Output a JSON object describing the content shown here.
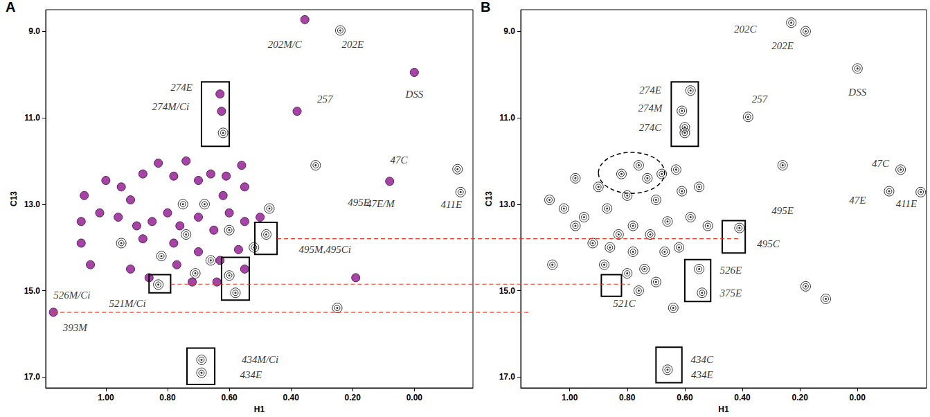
{
  "chart_data": [
    {
      "type": "scatter",
      "panel": "A",
      "x_label": "H1",
      "y_label": "C13",
      "xlim": [
        1.195,
        -0.19
      ],
      "ylim": [
        17.25,
        8.5
      ],
      "xticks": [
        {
          "value": 1,
          "label": "1.00"
        },
        {
          "value": 0.8,
          "label": "0.80"
        },
        {
          "value": 0.6,
          "label": "0.60"
        },
        {
          "value": 0.4,
          "label": "0.40"
        },
        {
          "value": 0.2,
          "label": "0.20"
        },
        {
          "value": 0,
          "label": "0.00"
        }
      ],
      "yticks": [
        {
          "value": 9,
          "label": "9.0"
        },
        {
          "value": 11,
          "label": "11.0"
        },
        {
          "value": 13,
          "label": "13.0"
        },
        {
          "value": 15,
          "label": "15.0"
        },
        {
          "value": 17,
          "label": "17.0"
        }
      ],
      "series": [
        {
          "color": "#000000",
          "marker": "contour",
          "x": [
            0.24,
            -0.14,
            -0.15,
            0.32,
            0.48,
            0.83,
            0.58,
            0.69,
            0.69,
            0.25,
            0.62,
            0.75,
            0.68,
            0.82,
            0.71,
            0.47,
            0.6,
            0.52,
            0.66,
            0.74,
            0.95,
            0.6
          ],
          "y": [
            8.98,
            12.19,
            12.72,
            12.1,
            13.7,
            14.86,
            15.05,
            16.6,
            16.9,
            15.4,
            11.35,
            13.0,
            13.0,
            14.2,
            14.6,
            13.1,
            13.6,
            14.0,
            14.3,
            13.7,
            13.9,
            14.65
          ]
        },
        {
          "color": "#9b309b",
          "marker": "filled",
          "x": [
            0.355,
            0.0,
            0.63,
            0.625,
            0.38,
            0.08,
            1.17,
            0.19,
            1.07,
            1.0,
            0.95,
            0.92,
            0.88,
            0.83,
            0.78,
            0.74,
            0.7,
            0.66,
            0.61,
            0.56,
            0.55,
            0.62,
            1.08,
            1.02,
            0.96,
            0.9,
            0.85,
            0.8,
            0.76,
            0.7,
            0.65,
            0.6,
            0.55,
            0.5,
            0.88,
            0.78,
            1.05,
            0.92,
            0.86,
            0.77,
            0.7,
            0.63,
            0.55,
            0.64,
            0.72,
            1.08,
            0.57
          ],
          "y": [
            8.73,
            9.95,
            10.45,
            10.85,
            10.85,
            12.47,
            15.5,
            14.7,
            12.8,
            12.45,
            12.6,
            12.9,
            12.3,
            12.05,
            12.35,
            12.0,
            12.45,
            12.3,
            12.35,
            12.1,
            12.6,
            12.8,
            13.4,
            13.2,
            13.3,
            13.5,
            13.4,
            13.2,
            13.5,
            13.3,
            13.6,
            13.2,
            13.4,
            13.3,
            13.8,
            13.9,
            14.4,
            14.5,
            14.7,
            14.4,
            14.1,
            14.3,
            14.5,
            14.8,
            14.8,
            13.9,
            14.05
          ]
        }
      ],
      "annotations": [
        {
          "text": "202M/C",
          "x": 0.42,
          "y": 9.3
        },
        {
          "text": "202E",
          "x": 0.2,
          "y": 9.3
        },
        {
          "text": "DSS",
          "x": 0.0,
          "y": 10.45
        },
        {
          "text": "274E",
          "x": 0.755,
          "y": 10.3
        },
        {
          "text": "274M/Ci",
          "x": 0.79,
          "y": 10.75
        },
        {
          "text": "257",
          "x": 0.29,
          "y": 10.56
        },
        {
          "text": "47C",
          "x": 0.05,
          "y": 11.98
        },
        {
          "text": "47E/M",
          "x": 0.11,
          "y": 12.98
        },
        {
          "text": "411E",
          "x": -0.12,
          "y": 13.0
        },
        {
          "text": "495E",
          "x": 0.18,
          "y": 12.95
        },
        {
          "text": "495M,495Ci",
          "x": 0.29,
          "y": 14.05
        },
        {
          "text": "526M/Ci",
          "x": 1.11,
          "y": 15.1
        },
        {
          "text": "521M/Ci",
          "x": 0.93,
          "y": 15.3
        },
        {
          "text": "393M",
          "x": 1.1,
          "y": 15.85
        },
        {
          "text": "434M/Ci",
          "x": 0.5,
          "y": 16.6
        },
        {
          "text": "434E",
          "x": 0.53,
          "y": 16.95
        }
      ],
      "boxes": [
        {
          "x": [
            0.69,
            0.6
          ],
          "y": [
            10.17,
            11.66
          ]
        },
        {
          "x": [
            0.517,
            0.445
          ],
          "y": [
            13.42,
            14.16
          ]
        },
        {
          "x": [
            0.86,
            0.79
          ],
          "y": [
            14.63,
            15.05
          ]
        },
        {
          "x": [
            0.625,
            0.535
          ],
          "y": [
            14.23,
            15.22
          ]
        },
        {
          "x": [
            0.737,
            0.647
          ],
          "y": [
            16.33,
            17.17
          ]
        }
      ]
    },
    {
      "type": "scatter",
      "panel": "B",
      "x_label": "H1",
      "y_label": "C13",
      "xlim": [
        1.17,
        -0.24
      ],
      "ylim": [
        17.25,
        8.5
      ],
      "xticks": [
        {
          "value": 1,
          "label": "1.00"
        },
        {
          "value": 0.8,
          "label": "0.80"
        },
        {
          "value": 0.6,
          "label": "0.60"
        },
        {
          "value": 0.4,
          "label": "0.40"
        },
        {
          "value": 0.2,
          "label": "0.20"
        },
        {
          "value": 0,
          "label": "0.00"
        }
      ],
      "yticks": [
        {
          "value": 9,
          "label": "9.0"
        },
        {
          "value": 11,
          "label": "11.0"
        },
        {
          "value": 13,
          "label": "13.0"
        },
        {
          "value": 15,
          "label": "15.0"
        },
        {
          "value": 17,
          "label": "17.0"
        }
      ],
      "series": [
        {
          "color": "#000000",
          "marker": "contour",
          "x": [
            0.23,
            0.18,
            0.0,
            0.58,
            0.61,
            0.6,
            0.6,
            0.38,
            0.26,
            -0.15,
            -0.11,
            -0.22,
            0.41,
            0.55,
            0.54,
            0.66,
            0.18,
            0.11,
            0.64,
            1.07,
            1.06,
            0.98,
            0.95,
            0.9,
            0.87,
            0.86,
            0.82,
            0.8,
            0.76,
            0.73,
            0.7,
            0.68,
            0.66,
            0.63,
            0.61,
            0.58,
            0.55,
            0.52,
            0.78,
            0.72,
            0.83,
            0.92,
            0.98,
            1.02,
            0.78,
            0.74,
            0.67,
            0.7,
            0.62,
            0.8,
            0.88,
            0.76
          ],
          "y": [
            8.8,
            9.0,
            9.86,
            10.37,
            10.84,
            11.22,
            11.35,
            10.98,
            12.1,
            12.2,
            12.7,
            12.72,
            13.55,
            14.5,
            15.05,
            16.83,
            14.9,
            15.19,
            15.4,
            12.9,
            14.4,
            12.4,
            13.3,
            12.6,
            13.1,
            14.0,
            12.3,
            12.8,
            12.1,
            12.4,
            12.9,
            12.3,
            13.4,
            12.2,
            12.7,
            13.3,
            12.6,
            13.5,
            13.5,
            13.7,
            13.7,
            13.9,
            13.5,
            13.1,
            14.1,
            14.5,
            14.1,
            14.8,
            14.0,
            14.6,
            14.4,
            15.0
          ]
        }
      ],
      "annotations": [
        {
          "text": "202C",
          "x": 0.39,
          "y": 8.95
        },
        {
          "text": "202E",
          "x": 0.26,
          "y": 9.34
        },
        {
          "text": "DSS",
          "x": 0.0,
          "y": 10.4
        },
        {
          "text": "274E",
          "x": 0.72,
          "y": 10.36
        },
        {
          "text": "274M",
          "x": 0.72,
          "y": 10.77
        },
        {
          "text": "274C",
          "x": 0.72,
          "y": 11.22
        },
        {
          "text": "257",
          "x": 0.34,
          "y": 10.56
        },
        {
          "text": "47C",
          "x": -0.08,
          "y": 12.05
        },
        {
          "text": "47E",
          "x": 0.0,
          "y": 12.9
        },
        {
          "text": "411E",
          "x": -0.17,
          "y": 12.98
        },
        {
          "text": "495E",
          "x": 0.26,
          "y": 13.14
        },
        {
          "text": "495C",
          "x": 0.31,
          "y": 13.92
        },
        {
          "text": "526E",
          "x": 0.44,
          "y": 14.52
        },
        {
          "text": "375E",
          "x": 0.44,
          "y": 15.06
        },
        {
          "text": "521C",
          "x": 0.81,
          "y": 15.3
        },
        {
          "text": "434C",
          "x": 0.54,
          "y": 16.6
        },
        {
          "text": "434E",
          "x": 0.54,
          "y": 16.95
        }
      ],
      "boxes": [
        {
          "x": [
            0.647,
            0.553
          ],
          "y": [
            10.17,
            11.66
          ]
        },
        {
          "x": [
            0.47,
            0.39
          ],
          "y": [
            13.38,
            14.13
          ]
        },
        {
          "x": [
            0.89,
            0.82
          ],
          "y": [
            14.63,
            15.13
          ]
        },
        {
          "x": [
            0.6,
            0.51
          ],
          "y": [
            14.28,
            15.25
          ]
        },
        {
          "x": [
            0.7,
            0.61
          ],
          "y": [
            16.31,
            17.13
          ]
        }
      ],
      "circled_region": {
        "x": [
          0.9,
          0.67
        ],
        "y": [
          11.8,
          12.75
        ]
      }
    }
  ],
  "red_dashed_lines": [
    {
      "y": 13.8,
      "from": {
        "panel": "A",
        "x": 0.445
      },
      "to": {
        "panel": "B",
        "x": 0.41
      },
      "color": "#e8351e",
      "line_style": "dashed"
    },
    {
      "y": 14.85,
      "from": {
        "panel": "A",
        "x": 0.79
      },
      "to": {
        "panel": "B",
        "x": 0.79
      },
      "color": "#e8351e",
      "line_style": "dashed"
    },
    {
      "y": 15.5,
      "from": {
        "panel": "A",
        "x": 1.17
      },
      "to": {
        "panel": "B",
        "x": 1.14
      },
      "color": "#e8351e",
      "line_style": "dashed"
    }
  ]
}
